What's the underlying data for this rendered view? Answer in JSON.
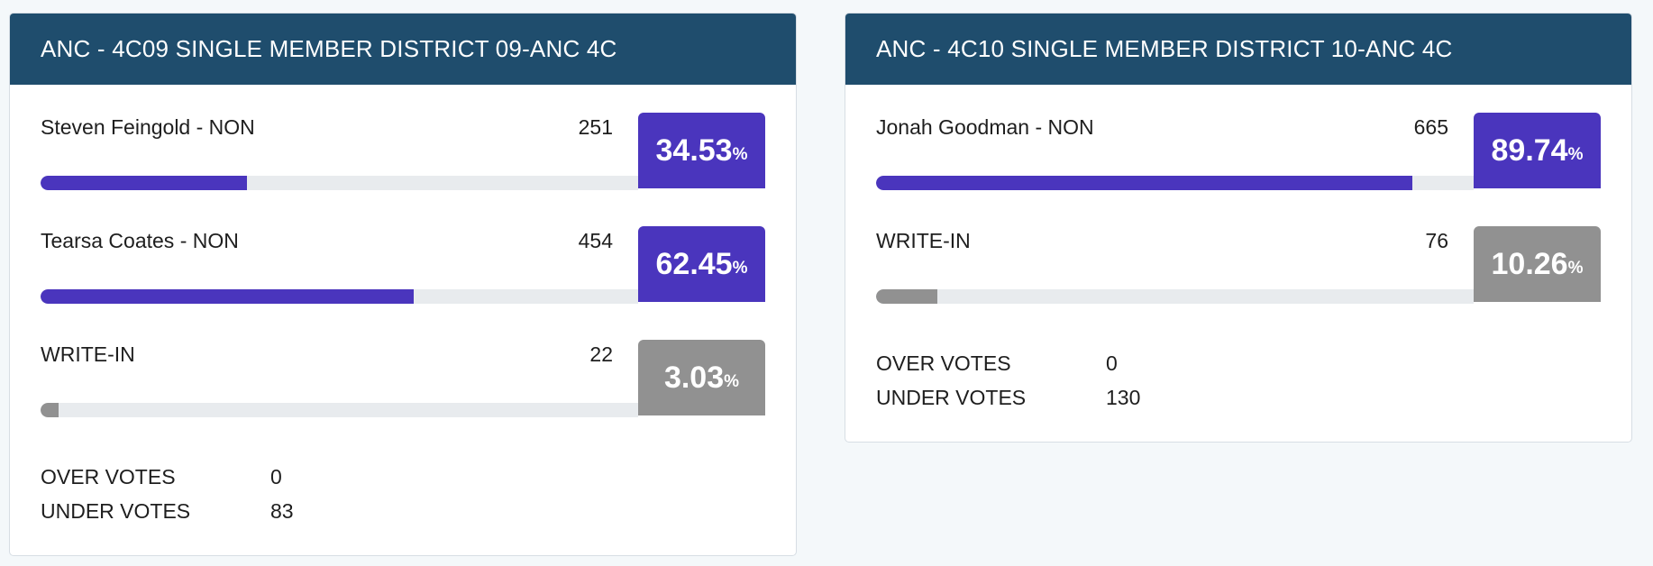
{
  "colors": {
    "header_bg": "#1f4d6d",
    "winner": "#4a35bd",
    "writein": "#919191",
    "track": "#e8ebee"
  },
  "districts": [
    {
      "title": "ANC - 4C09 SINGLE MEMBER DISTRICT 09-ANC 4C",
      "candidates": [
        {
          "name": "Steven Feingold - NON",
          "votes": "251",
          "percent": "34.53",
          "share": 34.53,
          "color": "#4a35bd"
        },
        {
          "name": "Tearsa Coates - NON",
          "votes": "454",
          "percent": "62.45",
          "share": 62.45,
          "color": "#4a35bd"
        },
        {
          "name": "WRITE-IN",
          "votes": "22",
          "percent": "3.03",
          "share": 3.03,
          "color": "#919191"
        }
      ],
      "over_votes_label": "OVER VOTES",
      "over_votes": "0",
      "under_votes_label": "UNDER VOTES",
      "under_votes": "83"
    },
    {
      "title": "ANC - 4C10 SINGLE MEMBER DISTRICT 10-ANC 4C",
      "candidates": [
        {
          "name": "Jonah Goodman - NON",
          "votes": "665",
          "percent": "89.74",
          "share": 89.74,
          "color": "#4a35bd"
        },
        {
          "name": "WRITE-IN",
          "votes": "76",
          "percent": "10.26",
          "share": 10.26,
          "color": "#919191"
        }
      ],
      "over_votes_label": "OVER VOTES",
      "over_votes": "0",
      "under_votes_label": "UNDER VOTES",
      "under_votes": "130"
    }
  ],
  "percent_sign": "%"
}
